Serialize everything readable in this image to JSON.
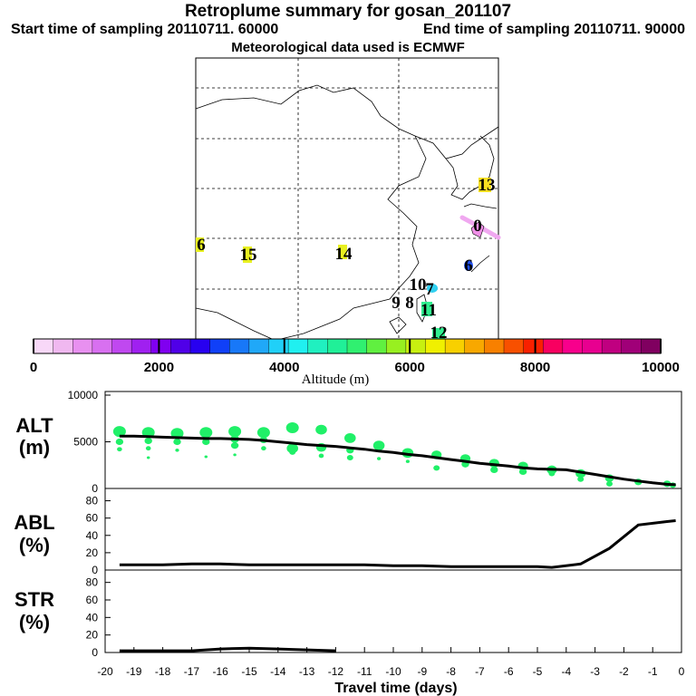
{
  "header": {
    "title": "Retroplume summary for gosan_201107",
    "start_label": "Start time of sampling 20110711. 60000",
    "end_label": "End time of sampling 20110711. 90000",
    "met_label": "Meteorological data used is ECMWF"
  },
  "colorbar": {
    "label": "Altitude (m)",
    "ticks": [
      "0",
      "2000",
      "4000",
      "6000",
      "8000",
      "10000"
    ],
    "colors": [
      "#f8d8f8",
      "#f0b8f0",
      "#e890f0",
      "#d870f0",
      "#c048f0",
      "#a020f0",
      "#8000f0",
      "#5000e8",
      "#2800f0",
      "#1040f8",
      "#1878f8",
      "#20a8f8",
      "#20d0f8",
      "#20f0f0",
      "#20f0c0",
      "#20f098",
      "#30f070",
      "#60f040",
      "#98f020",
      "#c8f010",
      "#f0f000",
      "#f8d000",
      "#f8a800",
      "#f88000",
      "#f85000",
      "#f82000",
      "#f80060",
      "#f8008c",
      "#e80090",
      "#c00080",
      "#a00078",
      "#800060"
    ]
  },
  "map_labels": [
    {
      "text": "6",
      "color": "#e8f020"
    },
    {
      "text": "15",
      "color": "#e8f020"
    },
    {
      "text": "14",
      "color": "#e8f020"
    },
    {
      "text": "13",
      "color": "#f8e020"
    },
    {
      "text": "0",
      "color": "#e060e0"
    },
    {
      "text": "6",
      "color": "#2050f0"
    },
    {
      "text": "10",
      "color": "#30f090"
    },
    {
      "text": "7",
      "color": "#30d0f0"
    },
    {
      "text": "9",
      "color": "#30f0b0"
    },
    {
      "text": "8",
      "color": "#30f0b0"
    },
    {
      "text": "11",
      "color": "#30f090"
    },
    {
      "text": "12",
      "color": "#30f090"
    }
  ],
  "axes_labels": {
    "alt": {
      "top": "ALT",
      "unit": "(m)"
    },
    "abl": {
      "top": "ABL",
      "unit": "(%)"
    },
    "str": {
      "top": "STR",
      "unit": "(%)"
    },
    "xlabel": "Travel time (days)"
  },
  "chart_data": [
    {
      "type": "line",
      "title": "ALT",
      "ylabel": "ALT (m)",
      "xlabel": "Travel time (days)",
      "xlim": [
        -20,
        0
      ],
      "ylim": [
        0,
        10000
      ],
      "yticks": [
        10000,
        5000,
        0
      ],
      "x": [
        -19.5,
        -19,
        -18.5,
        -18,
        -17.5,
        -17,
        -16.5,
        -16,
        -15.5,
        -15,
        -14.5,
        -14,
        -13.5,
        -13,
        -12.5,
        -12,
        -11.5,
        -11,
        -10.5,
        -10,
        -9.5,
        -9,
        -8.5,
        -8,
        -7.5,
        -7,
        -6.5,
        -6,
        -5.5,
        -5,
        -4.5,
        -4,
        -3.5,
        -3,
        -2.5,
        -2,
        -1.5,
        -1,
        -0.5,
        -0.2
      ],
      "y": [
        5600,
        5600,
        5550,
        5500,
        5450,
        5400,
        5350,
        5350,
        5300,
        5250,
        5150,
        5000,
        4850,
        4700,
        4600,
        4500,
        4350,
        4200,
        4000,
        3850,
        3650,
        3500,
        3300,
        3100,
        2900,
        2700,
        2550,
        2400,
        2200,
        2100,
        2050,
        2000,
        1750,
        1500,
        1250,
        1000,
        800,
        600,
        450,
        400
      ],
      "scatter_points": [
        {
          "x": -19.5,
          "y": 6100,
          "s": 1.0
        },
        {
          "x": -19.5,
          "y": 5000,
          "s": 0.6
        },
        {
          "x": -19.5,
          "y": 4200,
          "s": 0.4
        },
        {
          "x": -18.5,
          "y": 6000,
          "s": 1.0
        },
        {
          "x": -18.5,
          "y": 5100,
          "s": 0.6
        },
        {
          "x": -18.5,
          "y": 4300,
          "s": 0.4
        },
        {
          "x": -18.5,
          "y": 3300,
          "s": 0.25
        },
        {
          "x": -17.5,
          "y": 5900,
          "s": 1.0
        },
        {
          "x": -17.5,
          "y": 5000,
          "s": 0.6
        },
        {
          "x": -17.5,
          "y": 4100,
          "s": 0.3
        },
        {
          "x": -16.5,
          "y": 6000,
          "s": 1.0
        },
        {
          "x": -16.5,
          "y": 5000,
          "s": 0.6
        },
        {
          "x": -16.5,
          "y": 3400,
          "s": 0.25
        },
        {
          "x": -15.5,
          "y": 6100,
          "s": 1.0
        },
        {
          "x": -15.5,
          "y": 5300,
          "s": 0.7
        },
        {
          "x": -15.5,
          "y": 4600,
          "s": 0.6
        },
        {
          "x": -15.5,
          "y": 3600,
          "s": 0.25
        },
        {
          "x": -14.5,
          "y": 6000,
          "s": 1.0
        },
        {
          "x": -14.5,
          "y": 5200,
          "s": 0.6
        },
        {
          "x": -14.5,
          "y": 4300,
          "s": 0.4
        },
        {
          "x": -13.5,
          "y": 6500,
          "s": 1.0
        },
        {
          "x": -13.5,
          "y": 4300,
          "s": 0.9
        },
        {
          "x": -13.5,
          "y": 3900,
          "s": 0.5
        },
        {
          "x": -12.5,
          "y": 6300,
          "s": 0.9
        },
        {
          "x": -12.5,
          "y": 4400,
          "s": 0.8
        },
        {
          "x": -12.5,
          "y": 3500,
          "s": 0.4
        },
        {
          "x": -11.5,
          "y": 5400,
          "s": 0.9
        },
        {
          "x": -11.5,
          "y": 4100,
          "s": 0.6
        },
        {
          "x": -11.5,
          "y": 3300,
          "s": 0.5
        },
        {
          "x": -10.5,
          "y": 4600,
          "s": 0.9
        },
        {
          "x": -10.5,
          "y": 3200,
          "s": 0.3
        },
        {
          "x": -9.5,
          "y": 3800,
          "s": 0.9
        },
        {
          "x": -9.5,
          "y": 2900,
          "s": 0.3
        },
        {
          "x": -8.5,
          "y": 3600,
          "s": 0.8
        },
        {
          "x": -8.5,
          "y": 2200,
          "s": 0.5
        },
        {
          "x": -7.5,
          "y": 3200,
          "s": 0.8
        },
        {
          "x": -7.5,
          "y": 2600,
          "s": 0.6
        },
        {
          "x": -6.5,
          "y": 2700,
          "s": 0.8
        },
        {
          "x": -6.5,
          "y": 2000,
          "s": 0.6
        },
        {
          "x": -5.5,
          "y": 2400,
          "s": 0.8
        },
        {
          "x": -5.5,
          "y": 1800,
          "s": 0.6
        },
        {
          "x": -4.5,
          "y": 2000,
          "s": 0.8
        },
        {
          "x": -4.5,
          "y": 1600,
          "s": 0.5
        },
        {
          "x": -3.5,
          "y": 1600,
          "s": 0.8
        },
        {
          "x": -3.5,
          "y": 1000,
          "s": 0.5
        },
        {
          "x": -2.5,
          "y": 1100,
          "s": 0.7
        },
        {
          "x": -2.5,
          "y": 500,
          "s": 0.5
        },
        {
          "x": -1.5,
          "y": 700,
          "s": 0.6
        },
        {
          "x": -0.5,
          "y": 500,
          "s": 0.6
        },
        {
          "x": -0.3,
          "y": 350,
          "s": 0.5
        }
      ]
    },
    {
      "type": "line",
      "title": "ABL",
      "ylabel": "ABL (%)",
      "xlabel": "Travel time (days)",
      "xlim": [
        -20,
        0
      ],
      "ylim": [
        0,
        90
      ],
      "yticks": [
        80,
        60,
        40,
        20,
        0
      ],
      "x": [
        -19.5,
        -18,
        -17,
        -16,
        -15,
        -14,
        -13,
        -12,
        -11,
        -10,
        -9,
        -8,
        -7,
        -6,
        -5,
        -4.5,
        -3.5,
        -2.5,
        -1.5,
        -0.5,
        -0.2
      ],
      "y": [
        6,
        6,
        7,
        7,
        6,
        6,
        6,
        6,
        6,
        5,
        5,
        4,
        4,
        4,
        4,
        3,
        7,
        25,
        52,
        56,
        57
      ]
    },
    {
      "type": "line",
      "title": "STR",
      "ylabel": "STR (%)",
      "xlabel": "Travel time (days)",
      "xlim": [
        -20,
        0
      ],
      "ylim": [
        0,
        90
      ],
      "yticks": [
        80,
        60,
        40,
        20,
        0
      ],
      "xticks": [
        "-20",
        "-19",
        "-18",
        "-17",
        "-16",
        "-15",
        "-14",
        "-13",
        "-12",
        "-11",
        "-10",
        "-9",
        "-8",
        "-7",
        "-6",
        "-5",
        "-4",
        "-3",
        "-2",
        "-1",
        "0"
      ],
      "x": [
        -19.5,
        -18,
        -17,
        -16,
        -15,
        -14,
        -13,
        -12
      ],
      "y": [
        2,
        2,
        2,
        4,
        5,
        4,
        3,
        2
      ]
    }
  ]
}
